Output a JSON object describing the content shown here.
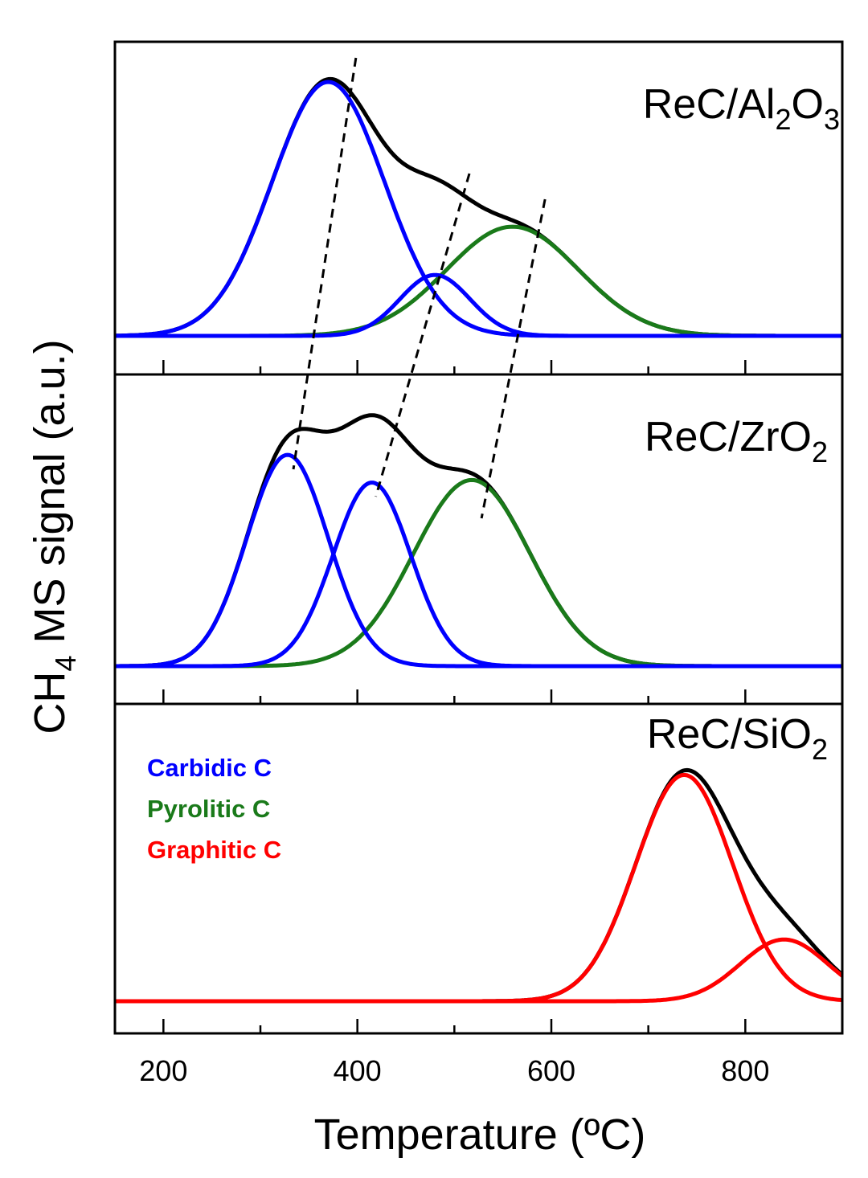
{
  "chart_data": {
    "type": "line",
    "xlabel": "Temperature (ºC)",
    "ylabel_main": "CH",
    "ylabel_sub": "4",
    "ylabel_rest": " MS signal (a.u.)",
    "xlim": [
      150,
      900
    ],
    "xticks": [
      200,
      400,
      600,
      800
    ],
    "xtick_labels": [
      "200",
      "400",
      "600",
      "800"
    ],
    "minor_xticks": [
      300,
      500,
      700
    ],
    "colors": {
      "total": "#000000",
      "carbidic": "#0000ff",
      "pyrolitic": "#1a7a1a",
      "graphitic": "#ff0000"
    },
    "legend": [
      {
        "label": "Carbidic C",
        "color": "#0000ff"
      },
      {
        "label": "Pyrolitic C",
        "color": "#1a7a1a"
      },
      {
        "label": "Graphitic C",
        "color": "#ff0000"
      }
    ],
    "panels": [
      {
        "label_parts": [
          "ReC/Al",
          "2",
          "O",
          "3"
        ],
        "ylim": [
          0,
          1.1
        ],
        "components": [
          {
            "type": "carbidic",
            "center": 370,
            "amplitude": 1.0,
            "sigma": 58
          },
          {
            "type": "carbidic",
            "center": 480,
            "amplitude": 0.24,
            "sigma": 36
          },
          {
            "type": "pyrolitic",
            "center": 560,
            "amplitude": 0.43,
            "sigma": 68
          }
        ],
        "dashed_guides": [
          [
            367,
            334
          ],
          [
            484,
            419
          ],
          [
            562,
            528
          ]
        ]
      },
      {
        "label_parts": [
          "ReC/ZrO",
          "2"
        ],
        "ylim": [
          0,
          1.1
        ],
        "components": [
          {
            "type": "carbidic",
            "center": 328,
            "amplitude": 0.84,
            "sigma": 42
          },
          {
            "type": "carbidic",
            "center": 415,
            "amplitude": 0.73,
            "sigma": 40
          },
          {
            "type": "pyrolitic",
            "center": 518,
            "amplitude": 0.74,
            "sigma": 60
          }
        ]
      },
      {
        "label_parts": [
          "ReC/SiO",
          "2"
        ],
        "ylim": [
          0,
          1.1
        ],
        "components": [
          {
            "type": "graphitic",
            "center": 737,
            "amplitude": 0.88,
            "sigma": 50
          },
          {
            "type": "graphitic",
            "center": 840,
            "amplitude": 0.24,
            "sigma": 45
          }
        ]
      }
    ]
  }
}
